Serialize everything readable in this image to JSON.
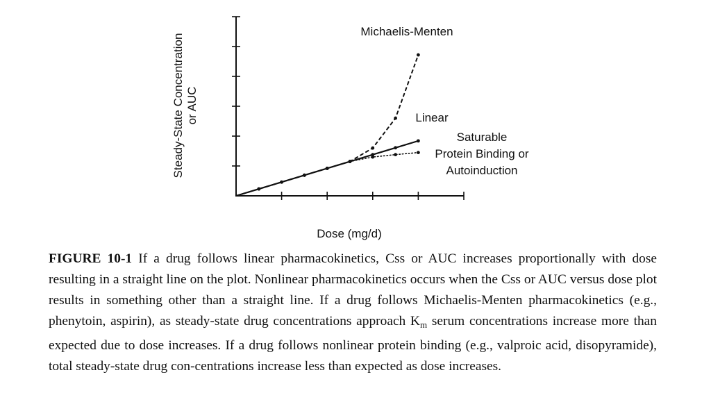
{
  "chart_data": {
    "type": "line",
    "xlabel": "Dose (mg/d)",
    "ylabel": [
      "Steady-State Concentration",
      "or AUC"
    ],
    "xlim": [
      0,
      5
    ],
    "ylim": [
      0,
      6
    ],
    "x_ticks": [
      0,
      1,
      2,
      3,
      4,
      5
    ],
    "y_ticks": [
      0,
      1,
      2,
      3,
      4,
      5,
      6
    ],
    "tick_labels_shown": false,
    "grid": false,
    "legend": "none",
    "series": [
      {
        "name": "Michaelis-Menten",
        "style": "dashed",
        "x": [
          0,
          0.5,
          1,
          1.5,
          2,
          2.5,
          3,
          3.5,
          4
        ],
        "y": [
          0,
          0.23,
          0.46,
          0.69,
          0.92,
          1.15,
          1.6,
          2.6,
          4.72
        ]
      },
      {
        "name": "Linear",
        "style": "solid",
        "x": [
          0,
          0.5,
          1,
          1.5,
          2,
          2.5,
          3,
          3.5,
          4
        ],
        "y": [
          0,
          0.23,
          0.46,
          0.69,
          0.92,
          1.15,
          1.38,
          1.61,
          1.84
        ]
      },
      {
        "name": [
          "Saturable",
          "Protein Binding or",
          "Autoinduction"
        ],
        "style": "dotted",
        "x": [
          0,
          0.5,
          1,
          1.5,
          2,
          2.5,
          3,
          3.5,
          4
        ],
        "y": [
          0,
          0.23,
          0.46,
          0.69,
          0.92,
          1.15,
          1.3,
          1.38,
          1.45
        ]
      }
    ]
  },
  "caption": {
    "figure_label": "FIGURE 10-1",
    "text_before_sub": " If a drug follows linear pharmacokinetics, Css or AUC increases proportionally with dose resulting in a straight line on the plot. Nonlinear pharmacokinetics occurs when the Css or AUC versus dose plot results in something other than a straight line. If a drug follows Michaelis-Menten pharmacokinetics (e.g., phenytoin, aspirin), as steady-state drug concentrations approach K",
    "subscript": "m",
    "text_after_sub": " serum concentrations increase more than expected due to dose increases. If a drug follows nonlinear protein binding (e.g., valproic acid, disopyramide), total steady-state drug con-centrations increase less than expected as dose increases."
  }
}
